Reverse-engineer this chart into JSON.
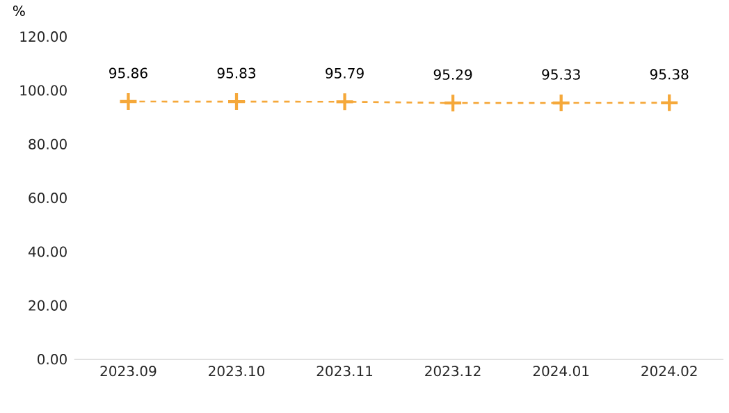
{
  "chart_data": {
    "type": "line",
    "ylabel": "%",
    "categories": [
      "2023.09",
      "2023.10",
      "2023.11",
      "2023.12",
      "2024.01",
      "2024.02"
    ],
    "values": [
      95.86,
      95.83,
      95.79,
      95.29,
      95.33,
      95.38
    ],
    "color": "#f5a83a",
    "marker": "cross",
    "line_style": "dashed",
    "data_labels": true,
    "ylim": [
      0,
      120
    ],
    "yticks": [
      {
        "value": 0,
        "label": "0.00"
      },
      {
        "value": 20,
        "label": "20.00"
      },
      {
        "value": 40,
        "label": "40.00"
      },
      {
        "value": 60,
        "label": "60.00"
      },
      {
        "value": 80,
        "label": "80.00"
      },
      {
        "value": 100,
        "label": "100.00"
      },
      {
        "value": 120,
        "label": "120.00"
      }
    ]
  }
}
